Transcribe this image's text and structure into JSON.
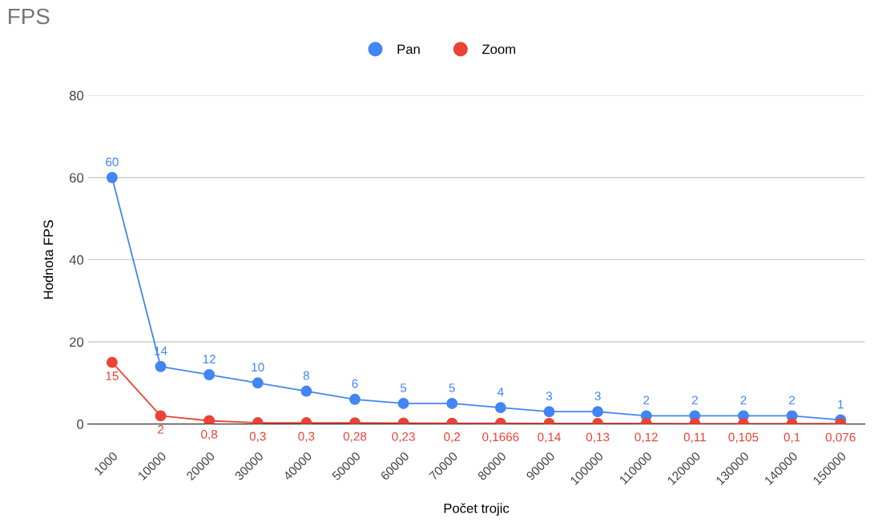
{
  "chart_data": {
    "type": "line",
    "title": "FPS",
    "xlabel": "Počet trojic",
    "ylabel": "Hodnota FPS",
    "categories": [
      "1000",
      "10000",
      "20000",
      "30000",
      "40000",
      "50000",
      "60000",
      "70000",
      "80000",
      "90000",
      "100000",
      "110000",
      "120000",
      "130000",
      "140000",
      "150000"
    ],
    "series": [
      {
        "name": "Pan",
        "color": "#4285f4",
        "values": [
          60,
          14,
          12,
          10,
          8,
          6,
          5,
          5,
          4,
          3,
          3,
          2,
          2,
          2,
          2,
          1
        ],
        "value_labels": [
          "60",
          "14",
          "12",
          "10",
          "8",
          "6",
          "5",
          "5",
          "4",
          "3",
          "3",
          "2",
          "2",
          "2",
          "2",
          "1"
        ]
      },
      {
        "name": "Zoom",
        "color": "#ea4335",
        "values": [
          15,
          2,
          0.8,
          0.3,
          0.3,
          0.28,
          0.23,
          0.2,
          0.1666,
          0.14,
          0.13,
          0.12,
          0.11,
          0.105,
          0.1,
          0.076
        ],
        "value_labels": [
          "15",
          "2",
          "0,8",
          "0,3",
          "0,3",
          "0,28",
          "0,23",
          "0,2",
          "0,1666",
          "0,14",
          "0,13",
          "0,12",
          "0,11",
          "0,105",
          "0,1",
          "0,076"
        ]
      }
    ],
    "ylim": [
      0,
      80
    ],
    "yticks": [
      0,
      20,
      40,
      60,
      80
    ],
    "grid": "y",
    "legend": "top",
    "marker": "circle",
    "line_style": "solid"
  }
}
